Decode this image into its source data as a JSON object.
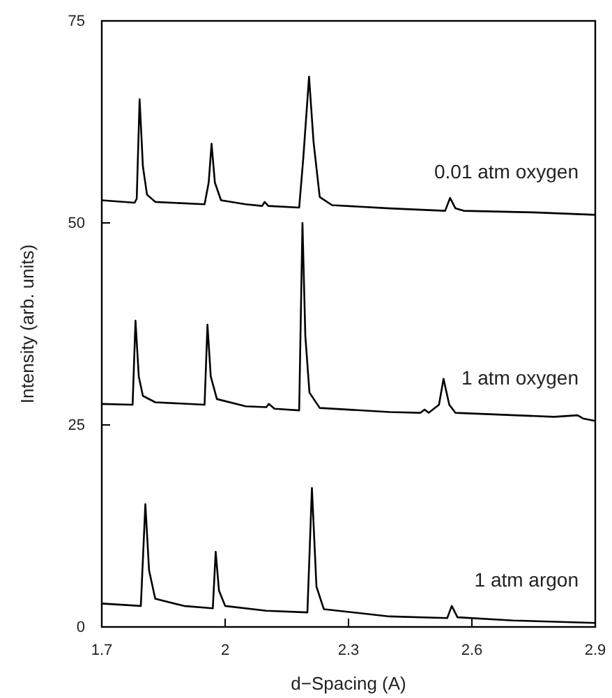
{
  "chart_data": {
    "type": "line",
    "xlabel": "d−Spacing (A)",
    "ylabel": "Intensity (arb. units)",
    "xlim": [
      1.7,
      2.9
    ],
    "ylim": [
      0,
      75
    ],
    "xticks": [
      1.7,
      2.0,
      2.3,
      2.6,
      2.9
    ],
    "yticks": [
      0,
      25,
      50,
      75
    ],
    "grid": false,
    "marker": "none",
    "line_style": "solid",
    "series": [
      {
        "name": "0.01 atm oxygen",
        "color": "#000000",
        "x": [
          1.7,
          1.78,
          1.785,
          1.792,
          1.8,
          1.81,
          1.83,
          1.95,
          1.96,
          1.967,
          1.975,
          1.99,
          2.05,
          2.09,
          2.096,
          2.105,
          2.18,
          2.19,
          2.204,
          2.215,
          2.23,
          2.26,
          2.4,
          2.535,
          2.547,
          2.56,
          2.58,
          2.75,
          2.9
        ],
        "values": [
          52.8,
          52.5,
          53,
          65.3,
          57,
          53.5,
          52.6,
          52.3,
          55,
          59.8,
          55,
          52.8,
          52.3,
          52.1,
          52.6,
          52.1,
          51.9,
          58,
          68.1,
          60,
          53.2,
          52.2,
          51.8,
          51.5,
          53.1,
          51.8,
          51.5,
          51.3,
          51.0
        ]
      },
      {
        "name": "1 atm oxygen",
        "color": "#000000",
        "x": [
          1.7,
          1.775,
          1.782,
          1.79,
          1.8,
          1.83,
          1.95,
          1.957,
          1.965,
          1.98,
          2.05,
          2.1,
          2.106,
          2.12,
          2.18,
          2.188,
          2.195,
          2.205,
          2.23,
          2.4,
          2.475,
          2.485,
          2.495,
          2.52,
          2.531,
          2.545,
          2.56,
          2.8,
          2.857,
          2.87,
          2.9
        ],
        "values": [
          27.6,
          27.5,
          37.9,
          31,
          28.6,
          27.8,
          27.5,
          37.4,
          31,
          28.2,
          27.3,
          27.2,
          27.6,
          27,
          26.8,
          50.0,
          36,
          29,
          27.1,
          26.6,
          26.5,
          26.9,
          26.5,
          27.5,
          30.7,
          27.5,
          26.5,
          26.0,
          26.2,
          25.8,
          25.5
        ]
      },
      {
        "name": "1 atm argon",
        "color": "#000000",
        "x": [
          1.7,
          1.795,
          1.806,
          1.815,
          1.83,
          1.9,
          1.97,
          1.977,
          1.985,
          2.0,
          2.1,
          2.2,
          2.211,
          2.222,
          2.24,
          2.4,
          2.54,
          2.551,
          2.565,
          2.7,
          2.9
        ],
        "values": [
          2.9,
          2.6,
          15.2,
          7,
          3.5,
          2.6,
          2.3,
          9.3,
          4.5,
          2.6,
          2.0,
          1.8,
          17.2,
          5,
          2.2,
          1.3,
          1.1,
          2.6,
          1.2,
          0.8,
          0.5
        ]
      }
    ]
  }
}
